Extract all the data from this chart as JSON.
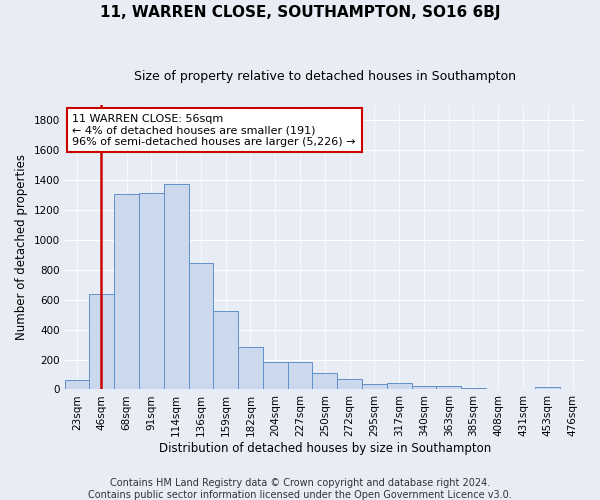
{
  "title": "11, WARREN CLOSE, SOUTHAMPTON, SO16 6BJ",
  "subtitle": "Size of property relative to detached houses in Southampton",
  "xlabel": "Distribution of detached houses by size in Southampton",
  "ylabel": "Number of detached properties",
  "footnote1": "Contains HM Land Registry data © Crown copyright and database right 2024.",
  "footnote2": "Contains public sector information licensed under the Open Government Licence v3.0.",
  "bar_labels": [
    "23sqm",
    "46sqm",
    "68sqm",
    "91sqm",
    "114sqm",
    "136sqm",
    "159sqm",
    "182sqm",
    "204sqm",
    "227sqm",
    "250sqm",
    "272sqm",
    "295sqm",
    "317sqm",
    "340sqm",
    "363sqm",
    "385sqm",
    "408sqm",
    "431sqm",
    "453sqm",
    "476sqm"
  ],
  "bar_values": [
    60,
    635,
    1305,
    1310,
    1370,
    845,
    525,
    285,
    185,
    185,
    110,
    70,
    35,
    40,
    25,
    20,
    10,
    5,
    5,
    15,
    0
  ],
  "bar_color": "#ccd8ed",
  "bar_edgecolor": "#6090c8",
  "ylim": [
    0,
    1900
  ],
  "yticks": [
    0,
    200,
    400,
    600,
    800,
    1000,
    1200,
    1400,
    1600,
    1800
  ],
  "vline_color": "#cc0000",
  "annotation_text": "11 WARREN CLOSE: 56sqm\n← 4% of detached houses are smaller (191)\n96% of semi-detached houses are larger (5,226) →",
  "annotation_box_color": "#ffffff",
  "annotation_box_edgecolor": "#cc0000",
  "background_color": "#e8edf5",
  "grid_color": "#ffffff",
  "title_fontsize": 11,
  "subtitle_fontsize": 9,
  "label_fontsize": 8.5,
  "tick_fontsize": 7.5,
  "footnote_fontsize": 7,
  "annot_fontsize": 8
}
